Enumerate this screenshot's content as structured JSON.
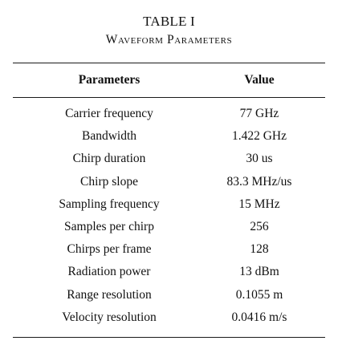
{
  "table": {
    "number": "TABLE I",
    "caption": "Waveform Parameters",
    "headers": {
      "parameter": "Parameters",
      "value": "Value"
    },
    "rows": [
      {
        "parameter": "Carrier frequency",
        "value": "77 GHz"
      },
      {
        "parameter": "Bandwidth",
        "value": "1.422 GHz"
      },
      {
        "parameter": "Chirp duration",
        "value": "30 us"
      },
      {
        "parameter": "Chirp slope",
        "value": "83.3 MHz/us"
      },
      {
        "parameter": "Sampling frequency",
        "value": "15 MHz"
      },
      {
        "parameter": "Samples per chirp",
        "value": "256"
      },
      {
        "parameter": "Chirps per frame",
        "value": "128"
      },
      {
        "parameter": "Radiation power",
        "value": "13 dBm"
      },
      {
        "parameter": "Range resolution",
        "value": "0.1055 m"
      },
      {
        "parameter": "Velocity resolution",
        "value": "0.0416 m/s"
      }
    ]
  }
}
